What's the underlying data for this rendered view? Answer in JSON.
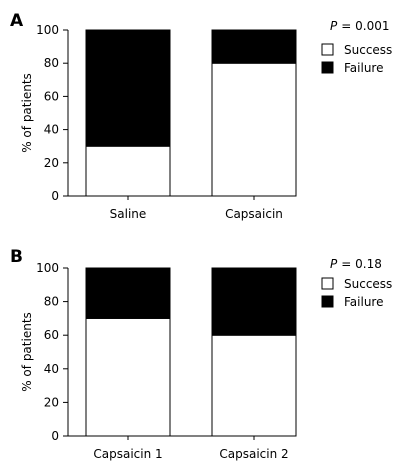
{
  "chart_data": [
    {
      "type": "bar",
      "stacked": true,
      "panel_label": "A",
      "annotation": "= 0.001",
      "annotation_symbol": "P",
      "ylabel": "% of patients",
      "xlabel": "",
      "ylim": [
        0,
        100
      ],
      "yticks": [
        0,
        20,
        40,
        60,
        80,
        100
      ],
      "categories": [
        "Saline",
        "Capsaicin"
      ],
      "series": [
        {
          "name": "Success",
          "values": [
            30,
            80
          ],
          "color": "#ffffff"
        },
        {
          "name": "Failure",
          "values": [
            70,
            20
          ],
          "color": "#000000"
        }
      ],
      "legend_position": "top-right",
      "grid": false
    },
    {
      "type": "bar",
      "stacked": true,
      "panel_label": "B",
      "annotation": "= 0.18",
      "annotation_symbol": "P",
      "ylabel": "% of patients",
      "xlabel": "",
      "ylim": [
        0,
        100
      ],
      "yticks": [
        0,
        20,
        40,
        60,
        80,
        100
      ],
      "categories": [
        "Capsaicin 1",
        "Capsaicin 2"
      ],
      "series": [
        {
          "name": "Success",
          "values": [
            70,
            60
          ],
          "color": "#ffffff"
        },
        {
          "name": "Failure",
          "values": [
            30,
            40
          ],
          "color": "#000000"
        }
      ],
      "legend_position": "top-right",
      "grid": false
    }
  ]
}
